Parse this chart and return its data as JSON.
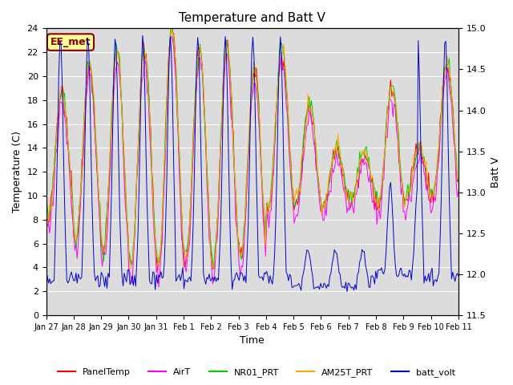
{
  "title": "Temperature and Batt V",
  "xlabel": "Time",
  "ylabel_left": "Temperature (C)",
  "ylabel_right": "Batt V",
  "ylim_left": [
    0,
    24
  ],
  "ylim_right": [
    11.5,
    15.0
  ],
  "yticks_left": [
    0,
    2,
    4,
    6,
    8,
    10,
    12,
    14,
    16,
    18,
    20,
    22,
    24
  ],
  "yticks_right": [
    11.5,
    12.0,
    12.5,
    13.0,
    13.5,
    14.0,
    14.5,
    15.0
  ],
  "xtick_labels": [
    "Jan 27",
    "Jan 28",
    "Jan 29",
    "Jan 30",
    "Jan 31",
    "Feb 1",
    "Feb 2",
    "Feb 3",
    "Feb 4",
    "Feb 5",
    "Feb 6",
    "Feb 7",
    "Feb 8",
    "Feb 9",
    "Feb 10",
    "Feb 11"
  ],
  "annotation_text": "EE_met",
  "annotation_color": "#8B0000",
  "annotation_bg": "#FFFF99",
  "bg_color": "#DCDCDC",
  "fig_color": "#FFFFFF",
  "grid_color": "#FFFFFF",
  "series_colors": {
    "PanelTemp": "#FF0000",
    "AirT": "#FF00FF",
    "NR01_PRT": "#00CC00",
    "AM25T_PRT": "#FFA500",
    "batt_volt": "#0000CC"
  },
  "n_points": 360,
  "n_days": 15
}
